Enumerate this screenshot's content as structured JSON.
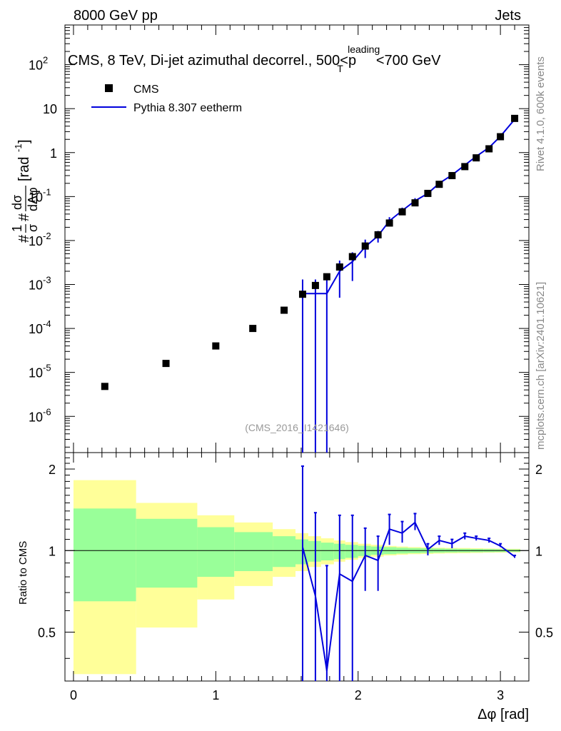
{
  "header": {
    "left": "8000 GeV pp",
    "right": "Jets"
  },
  "side_labels": {
    "rivet": "Rivet 4.1.0,  600k events",
    "mcplots": "mcplots.cern.ch [arXiv:2401.10621]"
  },
  "chart_data": {
    "type": "scatter",
    "title_main": "CMS, 8 TeV, Di-jet azimuthal decorrel., 500<p",
    "title_sup": "leading",
    "title_sub": "T",
    "title_end": "<700 GeV",
    "analysis_id": "(CMS_2016_I1421646)",
    "ylabel_main": "#1/σ d#σ/dΔφ [rad^-1]",
    "ylabel_parts": {
      "hash": "#",
      "one": "1",
      "sigma": "σ",
      "dsigma": "dσ",
      "dphi": "dΔφ",
      "unit": "[rad",
      "unit_sup": "-1",
      "unit_close": "]"
    },
    "xlabel": "Δφ [rad]",
    "ratio_ylabel": "Ratio to CMS",
    "xlim": [
      -0.06,
      3.2
    ],
    "ylim": [
      1.5e-07,
      800
    ],
    "ratio_ylim": [
      0.33,
      2.3
    ],
    "x_ticks": [
      "0",
      "1",
      "2",
      "3"
    ],
    "y_ticks": [
      {
        "base": "10",
        "exp": "-6",
        "value": 1e-06
      },
      {
        "base": "10",
        "exp": "-5",
        "value": 1e-05
      },
      {
        "base": "10",
        "exp": "-4",
        "value": 0.0001
      },
      {
        "base": "10",
        "exp": "-3",
        "value": 0.001
      },
      {
        "base": "10",
        "exp": "-2",
        "value": 0.01
      },
      {
        "base": "10",
        "exp": "-1",
        "value": 0.1
      },
      {
        "base": "1",
        "exp": "",
        "value": 1
      },
      {
        "base": "10",
        "exp": "",
        "value": 10
      },
      {
        "base": "10",
        "exp": "2",
        "value": 100
      }
    ],
    "ratio_ticks": [
      "0.5",
      "1",
      "2"
    ],
    "legend": [
      {
        "name": "CMS",
        "marker": "square",
        "color": "#000000"
      },
      {
        "name": "Pythia 8.307 eetherm",
        "marker": "line",
        "color": "#0000dd"
      }
    ],
    "cms": {
      "x": [
        0.22,
        0.65,
        1.0,
        1.26,
        1.48,
        1.61,
        1.7,
        1.78,
        1.87,
        1.96,
        2.05,
        2.14,
        2.22,
        2.31,
        2.4,
        2.49,
        2.57,
        2.66,
        2.75,
        2.83,
        2.92,
        3.0,
        3.1
      ],
      "y": [
        4.8e-06,
        1.6e-05,
        4e-05,
        0.0001,
        0.00026,
        0.0006,
        0.00095,
        0.0015,
        0.0025,
        0.0043,
        0.0075,
        0.0135,
        0.025,
        0.045,
        0.072,
        0.118,
        0.19,
        0.3,
        0.48,
        0.76,
        1.22,
        2.3,
        6.0
      ]
    },
    "pythia": {
      "x": [
        1.61,
        1.7,
        1.78,
        1.87,
        1.96,
        2.05,
        2.14,
        2.22,
        2.31,
        2.4,
        2.49,
        2.57,
        2.66,
        2.75,
        2.83,
        2.92,
        3.0,
        3.1
      ],
      "y": [
        0.00062,
        0.00062,
        0.00062,
        0.002,
        0.0033,
        0.0072,
        0.0128,
        0.028,
        0.048,
        0.08,
        0.118,
        0.2,
        0.31,
        0.52,
        0.82,
        1.3,
        2.35,
        5.7
      ],
      "err_lo": [
        1.5e-07,
        1.5e-07,
        1.5e-07,
        0.0005,
        0.0012,
        0.004,
        0.009,
        0.022,
        0.04,
        0.068,
        0.105,
        0.185,
        0.29,
        0.495,
        0.79,
        1.26,
        2.3,
        5.6
      ],
      "err_hi": [
        0.0013,
        0.0013,
        0.0013,
        0.0035,
        0.0054,
        0.0105,
        0.0165,
        0.034,
        0.056,
        0.092,
        0.13,
        0.215,
        0.33,
        0.545,
        0.85,
        1.34,
        2.4,
        5.8
      ]
    },
    "ratio": {
      "x": [
        1.61,
        1.7,
        1.78,
        1.87,
        1.96,
        2.05,
        2.14,
        2.22,
        2.31,
        2.4,
        2.49,
        2.57,
        2.66,
        2.75,
        2.83,
        2.92,
        3.0,
        3.1
      ],
      "y": [
        1.03,
        0.68,
        0.36,
        0.82,
        0.77,
        0.96,
        0.92,
        1.2,
        1.16,
        1.27,
        1.01,
        1.09,
        1.06,
        1.13,
        1.11,
        1.09,
        1.04,
        0.95
      ],
      "err_lo": [
        0.0,
        0.0,
        0.0,
        0.0,
        0.0,
        0.71,
        0.71,
        1.05,
        1.07,
        1.19,
        0.96,
        1.05,
        1.02,
        1.1,
        1.09,
        1.07,
        1.03,
        0.94
      ],
      "err_hi": [
        2.05,
        1.38,
        0.88,
        1.35,
        1.35,
        1.21,
        1.13,
        1.36,
        1.28,
        1.37,
        1.06,
        1.13,
        1.1,
        1.16,
        1.13,
        1.11,
        1.06,
        0.96
      ]
    },
    "bands": {
      "edges": [
        0.0,
        0.44,
        0.87,
        1.13,
        1.4,
        1.56,
        1.65,
        1.74,
        1.83,
        1.91,
        2.0,
        2.09,
        2.18,
        2.27,
        2.35,
        2.44,
        2.53,
        2.61,
        2.7,
        2.79,
        2.88,
        2.96,
        3.05,
        3.14
      ],
      "inner_lo": [
        0.65,
        0.73,
        0.8,
        0.84,
        0.87,
        0.89,
        0.91,
        0.92,
        0.93,
        0.94,
        0.955,
        0.965,
        0.97,
        0.975,
        0.978,
        0.98,
        0.982,
        0.984,
        0.985,
        0.986,
        0.987,
        0.988,
        0.99
      ],
      "inner_hi": [
        1.43,
        1.31,
        1.22,
        1.17,
        1.13,
        1.1,
        1.085,
        1.07,
        1.06,
        1.05,
        1.042,
        1.035,
        1.03,
        1.025,
        1.022,
        1.02,
        1.018,
        1.016,
        1.015,
        1.014,
        1.013,
        1.012,
        1.01
      ],
      "outer_lo": [
        0.35,
        0.52,
        0.66,
        0.74,
        0.8,
        0.84,
        0.87,
        0.89,
        0.91,
        0.925,
        0.94,
        0.95,
        0.96,
        0.965,
        0.97,
        0.972,
        0.975,
        0.977,
        0.978,
        0.98,
        0.982,
        0.983,
        0.985
      ],
      "outer_hi": [
        1.82,
        1.5,
        1.35,
        1.27,
        1.2,
        1.16,
        1.13,
        1.11,
        1.09,
        1.075,
        1.06,
        1.05,
        1.04,
        1.035,
        1.03,
        1.028,
        1.025,
        1.023,
        1.022,
        1.02,
        1.018,
        1.017,
        1.015
      ],
      "inner_color": "#99ff99",
      "outer_color": "#ffff99"
    }
  }
}
